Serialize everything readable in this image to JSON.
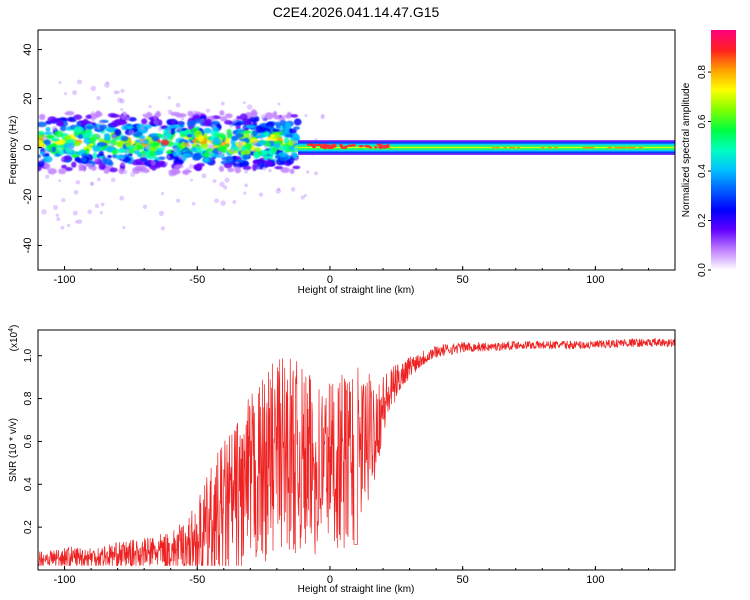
{
  "title": "C2E4.2026.041.14.47.G15",
  "chart_data": [
    {
      "type": "heatmap",
      "xlabel": "Height of straight line (km)",
      "ylabel": "Frequency (Hz)",
      "xlim": [
        -110,
        130
      ],
      "ylim": [
        -50,
        48
      ],
      "xticks": [
        -100,
        -50,
        0,
        50,
        100
      ],
      "yticks": [
        -40,
        -20,
        0,
        20,
        40
      ],
      "grid": false,
      "colorbar": {
        "label": "Normalized spectral amplitude",
        "range": [
          0,
          0.97
        ],
        "ticks": [
          0.0,
          0.2,
          0.4,
          0.6,
          0.8
        ],
        "colors": [
          "#ffffff",
          "#c080ff",
          "#6000ff",
          "#0000ff",
          "#0060ff",
          "#00c0ff",
          "#00ffc0",
          "#00ff40",
          "#80ff00",
          "#ffff00",
          "#ffa000",
          "#ff2020",
          "#ff0080"
        ]
      },
      "bands": [
        {
          "x_from": -110,
          "x_to": -12,
          "center_hz": 2,
          "half_width_hz": 8,
          "level": "scattered"
        },
        {
          "x_from": -12,
          "x_to": 130,
          "center_hz": 0,
          "half_width_hz": 3,
          "level": "continuous"
        }
      ]
    },
    {
      "type": "line",
      "xlabel": "Height of straight line (km)",
      "ylabel": "SNR (10 * v/v)",
      "scale_label": "(x10",
      "scale_exponent": "4",
      "xlim": [
        -110,
        130
      ],
      "ylim": [
        0,
        1.12
      ],
      "xticks": [
        -100,
        -50,
        0,
        50,
        100
      ],
      "yticks": [
        0.2,
        0.4,
        0.6,
        0.8,
        1.0
      ],
      "ytick_labels": [
        "0.2",
        "0.4",
        "0.6",
        "0.8",
        "1.0"
      ],
      "grid": false,
      "series": [
        {
          "color": "#ee2222",
          "x": [
            -110,
            -100,
            -90,
            -80,
            -70,
            -60,
            -55,
            -50,
            -45,
            -40,
            -35,
            -30,
            -25,
            -20,
            -15,
            -10,
            -5,
            0,
            5,
            10,
            15,
            20,
            25,
            30,
            35,
            40,
            50,
            60,
            70,
            80,
            90,
            100,
            110,
            120,
            130
          ],
          "y": [
            0.05,
            0.06,
            0.06,
            0.07,
            0.08,
            0.09,
            0.11,
            0.14,
            0.2,
            0.27,
            0.33,
            0.4,
            0.47,
            0.55,
            0.55,
            0.5,
            0.48,
            0.52,
            0.5,
            0.55,
            0.62,
            0.76,
            0.88,
            0.95,
            0.99,
            1.02,
            1.04,
            1.04,
            1.05,
            1.05,
            1.05,
            1.05,
            1.06,
            1.06,
            1.06
          ],
          "spread": [
            0.04,
            0.05,
            0.05,
            0.06,
            0.07,
            0.09,
            0.12,
            0.18,
            0.28,
            0.34,
            0.38,
            0.42,
            0.44,
            0.46,
            0.46,
            0.44,
            0.42,
            0.4,
            0.42,
            0.4,
            0.3,
            0.16,
            0.08,
            0.05,
            0.04,
            0.03,
            0.025,
            0.02,
            0.02,
            0.02,
            0.02,
            0.02,
            0.02,
            0.02,
            0.02
          ]
        }
      ]
    }
  ]
}
